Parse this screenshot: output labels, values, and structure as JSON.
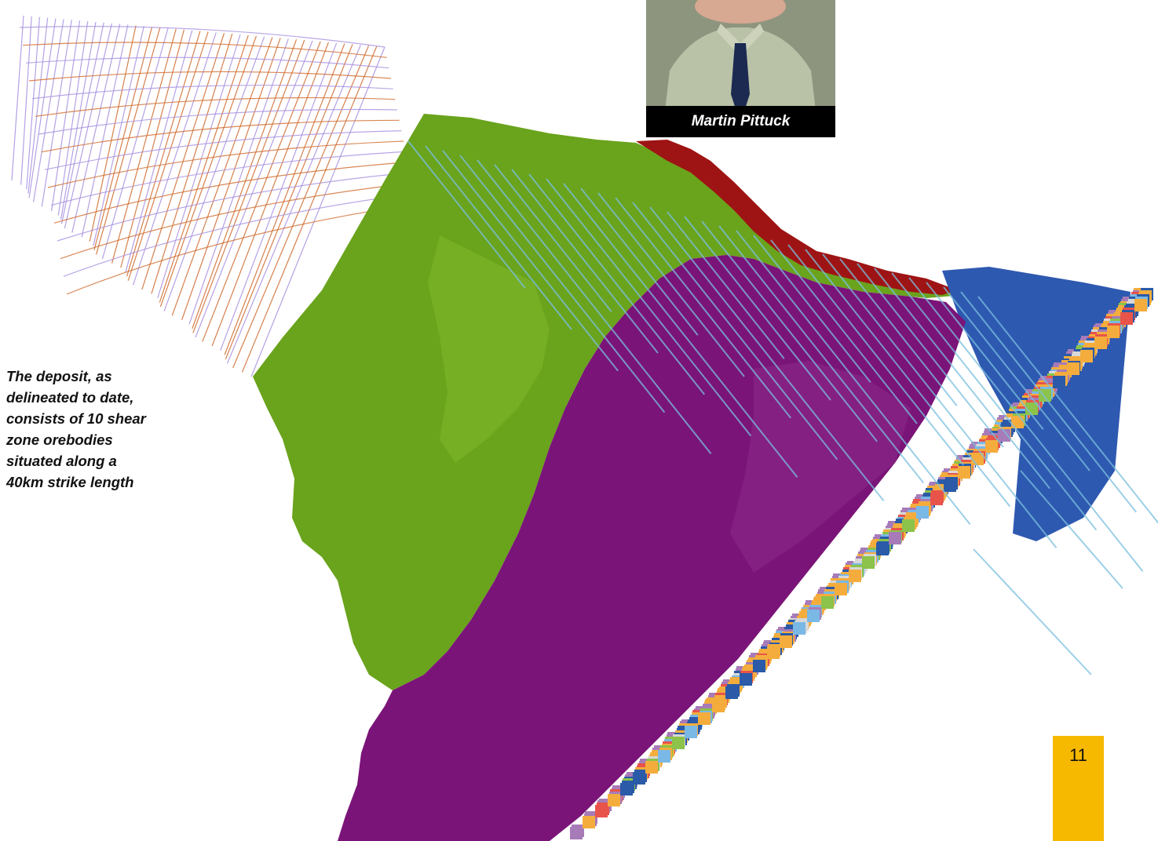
{
  "portrait": {
    "caption": "Martin Pittuck",
    "icon": "portrait-photo"
  },
  "figure": {
    "caption_lines": [
      "The deposit, as",
      "delineated to date,",
      "consists of 10 shear",
      "zone orebodies",
      "situated along a",
      "40km strike length"
    ],
    "colors": {
      "green_surface": "#6aa31c",
      "purple_surface": "#7a1478",
      "red_surface": "#9e1414",
      "blue_surface": "#2e59b0",
      "drillholes": "#7bc0e0",
      "grid_orange": "#d06a2c",
      "grid_violet": "#a890e0",
      "block_palette": [
        "#f4ad3d",
        "#a77bb8",
        "#2a5aa8",
        "#7ab8e6",
        "#e8544a",
        "#8cc34a",
        "#d8d8d8",
        "#cfe9f3"
      ]
    }
  },
  "page": {
    "number": "11",
    "tab_color": "#f7b800"
  }
}
